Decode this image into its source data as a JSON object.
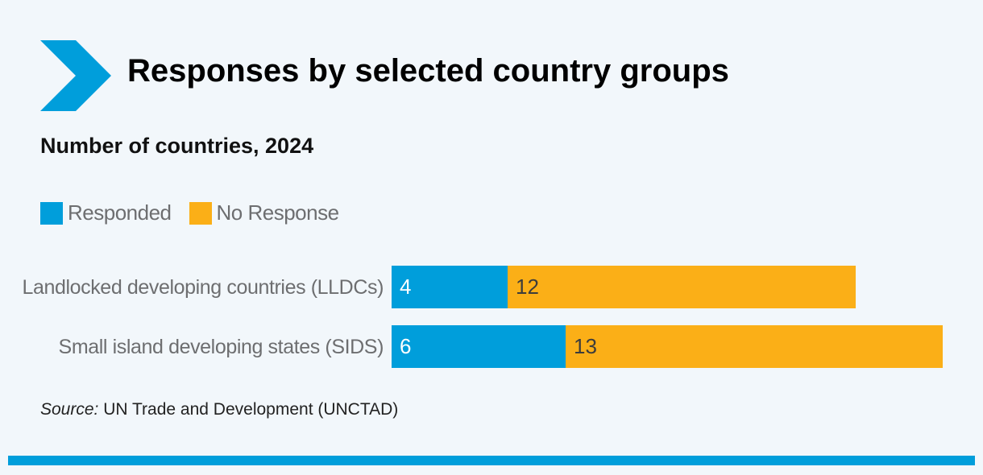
{
  "chart_data": {
    "type": "stacked-bar",
    "orientation": "horizontal",
    "title": "Responses by selected country groups",
    "subtitle": "Number of countries, 2024",
    "categories": [
      "Landlocked developing countries (LLDCs)",
      "Small island developing states (SIDS)"
    ],
    "series": [
      {
        "name": "Responded",
        "color": "#009edb",
        "label_color": "#ffffff",
        "values": [
          4,
          6
        ]
      },
      {
        "name": "No Response",
        "color": "#fbaf17",
        "label_color": "#3c3c3c",
        "values": [
          12,
          13
        ]
      }
    ],
    "source_label": "Source:",
    "source_text": "UN Trade and Development (UNCTAD)"
  }
}
